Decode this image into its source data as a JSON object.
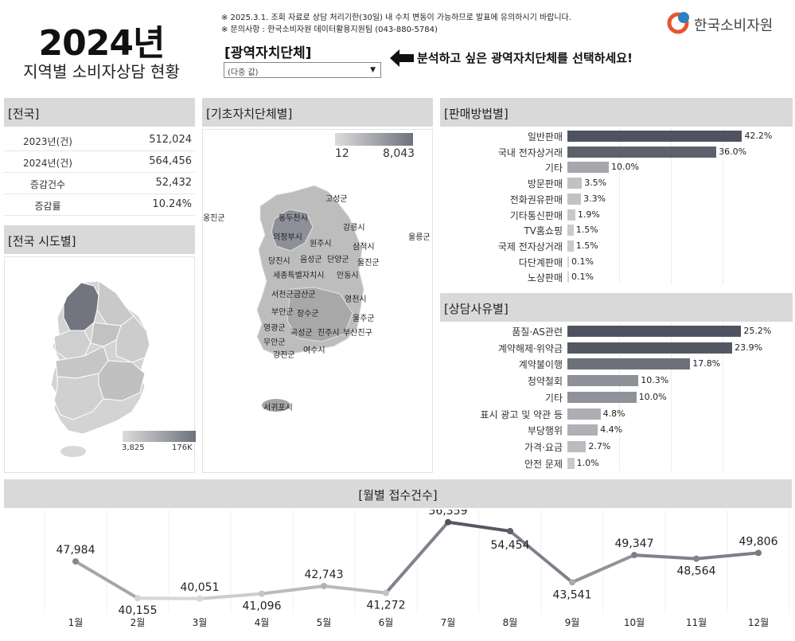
{
  "header": {
    "year": "2024년",
    "title": "지역별 소비자상담 현황",
    "notice1": "※ 2025.3.1. 조회 자료로 상담 처리기한(30일) 내 수치 변동이 가능하므로 발표에 유의하시기 바랍니다.",
    "notice2": "※ 문의사항 : 한국소비자원 데이터활용지원팀 (043-880-5784)",
    "region_label": "[광역자치단체]",
    "region_select_value": "(다중 값)",
    "select_hint": "분석하고 싶은 광역자치단체를 선택하세요!",
    "logo_text": "한국소비자원",
    "logo_color_a": "#e8542f",
    "logo_color_b": "#2e7fc1"
  },
  "national": {
    "title": "[전국]",
    "rows": [
      {
        "label": "2023년(건)",
        "value": "512,024"
      },
      {
        "label": "2024년(건)",
        "value": "564,456"
      },
      {
        "label": "증감건수",
        "value": "52,432"
      },
      {
        "label": "증감률",
        "value": "10.24%"
      }
    ]
  },
  "province_map": {
    "title": "[전국 시도별]",
    "legend_min": "3,825",
    "legend_max": "176K"
  },
  "district_map": {
    "title": "[기초자치단체별]",
    "legend_min": "12",
    "legend_max": "8,043",
    "labels": [
      "고성군",
      "옹진군",
      "동두천시",
      "의정부시",
      "강릉시",
      "울릉군",
      "원주시",
      "삼척시",
      "당진시",
      "음성군",
      "단양군",
      "울진군",
      "세종특별자치시",
      "안동시",
      "서천군",
      "금산군",
      "영천시",
      "부안군",
      "장수군",
      "영광군",
      "곡성군",
      "진주시",
      "부산진구",
      "울주군",
      "무안군",
      "강진군",
      "여수시",
      "서귀포시"
    ]
  },
  "sales_method": {
    "title": "[판매방법별]",
    "color_dark": "#4e535f",
    "items": [
      {
        "label": "일반판매",
        "value": 42.2,
        "text": "42.2%"
      },
      {
        "label": "국내 전자상거래",
        "value": 36.0,
        "text": "36.0%"
      },
      {
        "label": "기타",
        "value": 10.0,
        "text": "10.0%"
      },
      {
        "label": "방문판매",
        "value": 3.5,
        "text": "3.5%"
      },
      {
        "label": "전화권유판매",
        "value": 3.3,
        "text": "3.3%"
      },
      {
        "label": "기타통신판매",
        "value": 1.9,
        "text": "1.9%"
      },
      {
        "label": "TV홈쇼핑",
        "value": 1.5,
        "text": "1.5%"
      },
      {
        "label": "국제 전자상거래",
        "value": 1.5,
        "text": "1.5%"
      },
      {
        "label": "다단계판매",
        "value": 0.1,
        "text": "0.1%"
      },
      {
        "label": "노상판매",
        "value": 0.1,
        "text": "0.1%"
      }
    ]
  },
  "consult_reason": {
    "title": "[상담사유별]",
    "items": [
      {
        "label": "품질·AS관련",
        "value": 25.2,
        "text": "25.2%"
      },
      {
        "label": "계약해제·위약금",
        "value": 23.9,
        "text": "23.9%"
      },
      {
        "label": "계약불이행",
        "value": 17.8,
        "text": "17.8%"
      },
      {
        "label": "청약철회",
        "value": 10.3,
        "text": "10.3%"
      },
      {
        "label": "기타",
        "value": 10.0,
        "text": "10.0%"
      },
      {
        "label": "표시 광고 및 약관 등",
        "value": 4.8,
        "text": "4.8%"
      },
      {
        "label": "부당행위",
        "value": 4.4,
        "text": "4.4%"
      },
      {
        "label": "가격·요금",
        "value": 2.7,
        "text": "2.7%"
      },
      {
        "label": "안전 문제",
        "value": 1.0,
        "text": "1.0%"
      }
    ]
  },
  "chart_data": {
    "type": "line",
    "title": "[월별 접수건수]",
    "categories": [
      "1월",
      "2월",
      "3월",
      "4월",
      "5월",
      "6월",
      "7월",
      "8월",
      "9월",
      "10월",
      "11월",
      "12월"
    ],
    "values": [
      47984,
      40155,
      40051,
      41096,
      42743,
      41272,
      56359,
      54454,
      43541,
      49347,
      48564,
      49806
    ],
    "value_labels": [
      "47,984",
      "40,155",
      "40,051",
      "41,096",
      "42,743",
      "41,272",
      "56,359",
      "54,454",
      "43,541",
      "49,347",
      "48,564",
      "49,806"
    ],
    "ylim": [
      39000,
      57000
    ],
    "grid": "vertical"
  }
}
